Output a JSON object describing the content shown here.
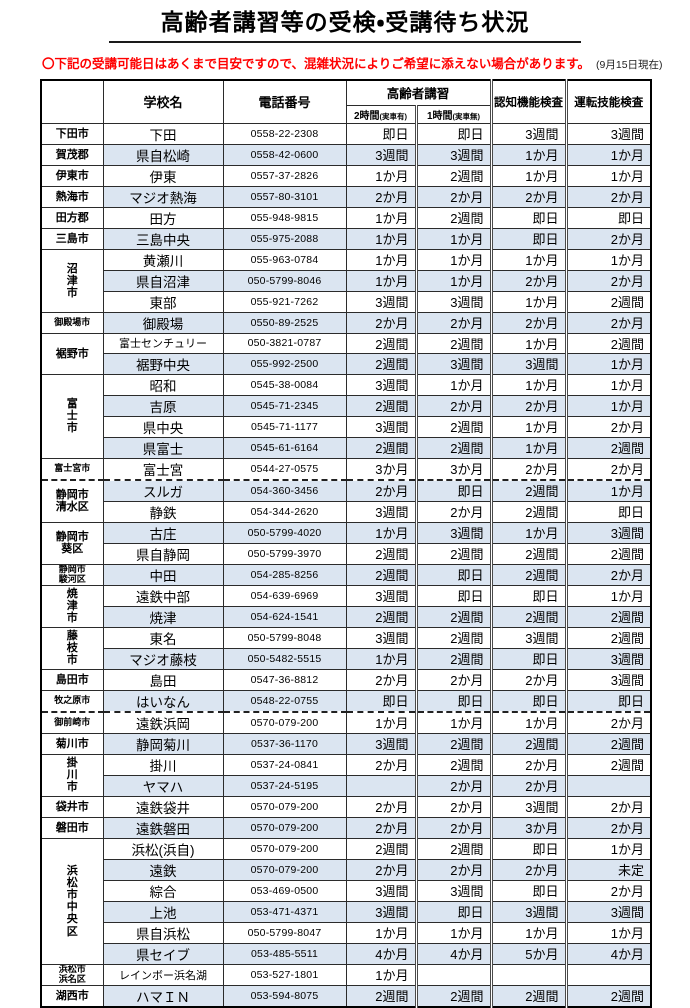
{
  "title": "高齢者講習等の受検・受講待ち状況",
  "notice": {
    "text": "〇下記の受講可能日はあくまで目安ですので、混雑状況によりご希望に添えない場合があります。",
    "date_note": "(9月15日現在)"
  },
  "colors": {
    "row_alt": "#dbe5f1",
    "notice_red": "#ff0000",
    "border": "#2b2b2b"
  },
  "table": {
    "headers": {
      "school": "学校名",
      "phone": "電話番号",
      "course_group": "高齢者講習",
      "course_2h": "2時間",
      "course_2h_note": "(実車有)",
      "course_1h": "1時間",
      "course_1h_note": "(実車無)",
      "cognitive": "認知機能検査",
      "driving": "運転技能検査"
    },
    "groups": [
      {
        "region": "下田市",
        "schools": [
          {
            "name": "下田",
            "phone": "0558-22-2308",
            "values": [
              "即日",
              "即日",
              "3週間",
              "3週間"
            ]
          }
        ]
      },
      {
        "region": "賀茂郡",
        "schools": [
          {
            "name": "県自松崎",
            "phone": "0558-42-0600",
            "values": [
              "3週間",
              "3週間",
              "1か月",
              "1か月"
            ]
          }
        ]
      },
      {
        "region": "伊東市",
        "schools": [
          {
            "name": "伊東",
            "phone": "0557-37-2826",
            "values": [
              "1か月",
              "2週間",
              "1か月",
              "1か月"
            ]
          }
        ]
      },
      {
        "region": "熱海市",
        "schools": [
          {
            "name": "マジオ熱海",
            "phone": "0557-80-3101",
            "values": [
              "2か月",
              "2か月",
              "2か月",
              "2か月"
            ]
          }
        ]
      },
      {
        "region": "田方郡",
        "schools": [
          {
            "name": "田方",
            "phone": "055-948-9815",
            "values": [
              "1か月",
              "2週間",
              "即日",
              "即日"
            ]
          }
        ]
      },
      {
        "region": "三島市",
        "schools": [
          {
            "name": "三島中央",
            "phone": "055-975-2088",
            "values": [
              "1か月",
              "1か月",
              "即日",
              "2か月"
            ]
          }
        ]
      },
      {
        "region": "沼津市",
        "mode": "v",
        "schools": [
          {
            "name": "黄瀬川",
            "phone": "055-963-0784",
            "values": [
              "1か月",
              "1か月",
              "1か月",
              "1か月"
            ]
          },
          {
            "name": "県自沼津",
            "phone": "050-5799-8046",
            "values": [
              "1か月",
              "1か月",
              "2か月",
              "2か月"
            ]
          },
          {
            "name": "東部",
            "phone": "055-921-7262",
            "values": [
              "3週間",
              "3週間",
              "1か月",
              "2週間"
            ]
          }
        ]
      },
      {
        "region": "御殿場市",
        "small": true,
        "schools": [
          {
            "name": "御殿場",
            "phone": "0550-89-2525",
            "values": [
              "2か月",
              "2か月",
              "2か月",
              "2か月"
            ]
          }
        ]
      },
      {
        "region": "裾野市",
        "schools": [
          {
            "name": "富士センチュリー",
            "phone": "050-3821-0787",
            "values": [
              "2週間",
              "2週間",
              "1か月",
              "2週間"
            ]
          },
          {
            "name": "裾野中央",
            "phone": "055-992-2500",
            "values": [
              "2週間",
              "3週間",
              "3週間",
              "1か月"
            ]
          }
        ]
      },
      {
        "region": "富士市",
        "mode": "v",
        "schools": [
          {
            "name": "昭和",
            "phone": "0545-38-0084",
            "values": [
              "3週間",
              "1か月",
              "1か月",
              "1か月"
            ]
          },
          {
            "name": "吉原",
            "phone": "0545-71-2345",
            "values": [
              "2週間",
              "2か月",
              "2か月",
              "1か月"
            ]
          },
          {
            "name": "県中央",
            "phone": "0545-71-1177",
            "values": [
              "3週間",
              "2週間",
              "1か月",
              "2か月"
            ]
          },
          {
            "name": "県富士",
            "phone": "0545-61-6164",
            "values": [
              "2週間",
              "2週間",
              "1か月",
              "2週間"
            ]
          }
        ]
      },
      {
        "region": "富士宮市",
        "small": true,
        "dashed_after": true,
        "schools": [
          {
            "name": "富士宮",
            "phone": "0544-27-0575",
            "values": [
              "3か月",
              "3か月",
              "2か月",
              "2か月"
            ]
          }
        ]
      },
      {
        "region": "静岡市清水区",
        "lines": [
          "静岡市",
          "清水区"
        ],
        "schools": [
          {
            "name": "スルガ",
            "phone": "054-360-3456",
            "values": [
              "2か月",
              "即日",
              "2週間",
              "1か月"
            ]
          },
          {
            "name": "静鉄",
            "phone": "054-344-2620",
            "values": [
              "3週間",
              "2か月",
              "2週間",
              "即日"
            ]
          }
        ]
      },
      {
        "region": "静岡市葵区",
        "lines": [
          "静岡市",
          "葵区"
        ],
        "schools": [
          {
            "name": "古庄",
            "phone": "050-5799-4020",
            "values": [
              "1か月",
              "3週間",
              "1か月",
              "3週間"
            ]
          },
          {
            "name": "県自静岡",
            "phone": "050-5799-3970",
            "values": [
              "2週間",
              "2週間",
              "2週間",
              "2週間"
            ]
          }
        ]
      },
      {
        "region": "静岡市駿河区",
        "lines": [
          "静岡市",
          "駿河区"
        ],
        "small": true,
        "schools": [
          {
            "name": "中田",
            "phone": "054-285-8256",
            "values": [
              "2週間",
              "即日",
              "2週間",
              "2か月"
            ]
          }
        ]
      },
      {
        "region": "焼津市",
        "mode": "v",
        "schools": [
          {
            "name": "遠鉄中部",
            "phone": "054-639-6969",
            "values": [
              "3週間",
              "即日",
              "即日",
              "1か月"
            ]
          },
          {
            "name": "焼津",
            "phone": "054-624-1541",
            "values": [
              "2週間",
              "2週間",
              "2週間",
              "2週間"
            ]
          }
        ]
      },
      {
        "region": "藤枝市",
        "mode": "v",
        "schools": [
          {
            "name": "東名",
            "phone": "050-5799-8048",
            "values": [
              "3週間",
              "2週間",
              "3週間",
              "2週間"
            ]
          },
          {
            "name": "マジオ藤枝",
            "phone": "050-5482-5515",
            "values": [
              "1か月",
              "2週間",
              "即日",
              "3週間"
            ]
          }
        ]
      },
      {
        "region": "島田市",
        "schools": [
          {
            "name": "島田",
            "phone": "0547-36-8812",
            "values": [
              "2か月",
              "2か月",
              "2か月",
              "3週間"
            ]
          }
        ]
      },
      {
        "region": "牧之原市",
        "small": true,
        "dashed_after": true,
        "schools": [
          {
            "name": "はいなん",
            "phone": "0548-22-0755",
            "values": [
              "即日",
              "即日",
              "即日",
              "即日"
            ]
          }
        ]
      },
      {
        "region": "御前崎市",
        "small": true,
        "schools": [
          {
            "name": "遠鉄浜岡",
            "phone": "0570-079-200",
            "values": [
              "1か月",
              "1か月",
              "1か月",
              "2か月"
            ]
          }
        ]
      },
      {
        "region": "菊川市",
        "schools": [
          {
            "name": "静岡菊川",
            "phone": "0537-36-1170",
            "values": [
              "3週間",
              "2週間",
              "2週間",
              "2週間"
            ]
          }
        ]
      },
      {
        "region": "掛川市",
        "mode": "v",
        "schools": [
          {
            "name": "掛川",
            "phone": "0537-24-0841",
            "values": [
              "2か月",
              "2週間",
              "2か月",
              "2週間"
            ]
          },
          {
            "name": "ヤマハ",
            "phone": "0537-24-5195",
            "values": [
              null,
              "2か月",
              "2か月",
              null
            ]
          }
        ]
      },
      {
        "region": "袋井市",
        "schools": [
          {
            "name": "遠鉄袋井",
            "phone": "0570-079-200",
            "values": [
              "2か月",
              "2か月",
              "3週間",
              "2か月"
            ]
          }
        ]
      },
      {
        "region": "磐田市",
        "schools": [
          {
            "name": "遠鉄磐田",
            "phone": "0570-079-200",
            "values": [
              "2か月",
              "2か月",
              "3か月",
              "2か月"
            ]
          }
        ]
      },
      {
        "region": "浜松市中央区",
        "mode": "v",
        "schools": [
          {
            "name": "浜松(浜自)",
            "phone": "0570-079-200",
            "values": [
              "2週間",
              "2週間",
              "即日",
              "1か月"
            ]
          },
          {
            "name": "遠鉄",
            "phone": "0570-079-200",
            "values": [
              "2か月",
              "2か月",
              "2か月",
              "未定"
            ]
          },
          {
            "name": "綜合",
            "phone": "053-469-0500",
            "values": [
              "3週間",
              "3週間",
              "即日",
              "2か月"
            ]
          },
          {
            "name": "上池",
            "phone": "053-471-4371",
            "values": [
              "3週間",
              "即日",
              "3週間",
              "3週間"
            ]
          },
          {
            "name": "県自浜松",
            "phone": "050-5799-8047",
            "values": [
              "1か月",
              "1か月",
              "1か月",
              "1か月"
            ]
          },
          {
            "name": "県セイブ",
            "phone": "053-485-5511",
            "values": [
              "4か月",
              "4か月",
              "5か月",
              "4か月"
            ]
          }
        ]
      },
      {
        "region": "浜松市浜名区",
        "lines": [
          "浜松市",
          "浜名区"
        ],
        "small": true,
        "schools": [
          {
            "name": "レインボー浜名湖",
            "phone": "053-527-1801",
            "values": [
              "1か月",
              null,
              null,
              null
            ]
          }
        ]
      },
      {
        "region": "湖西市",
        "schools": [
          {
            "name": "ハマＩＮ",
            "phone": "053-594-8075",
            "values": [
              "2週間",
              "2週間",
              "2週間",
              "2週間"
            ]
          }
        ]
      }
    ]
  }
}
